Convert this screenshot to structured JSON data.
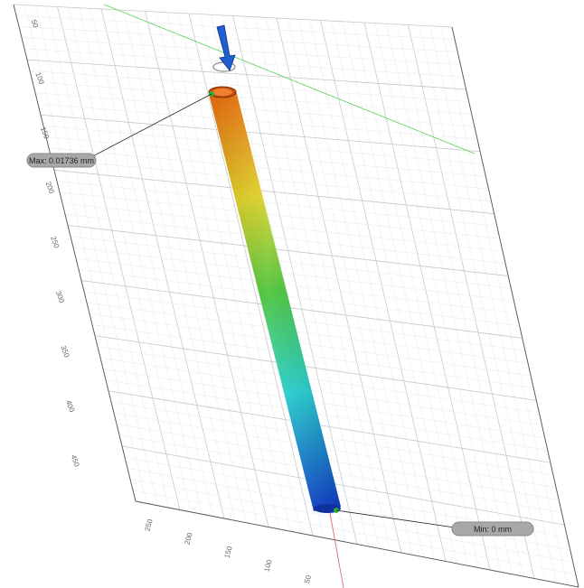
{
  "labels": {
    "max": "Max: 0.01736 mm",
    "min": "Min: 0 mm"
  },
  "vertical_axis_labels": [
    "50",
    "100",
    "150",
    "200",
    "250",
    "300",
    "350",
    "400",
    "450"
  ],
  "horizontal_axis_labels": [
    "250",
    "200",
    "150",
    "100",
    "50"
  ]
}
